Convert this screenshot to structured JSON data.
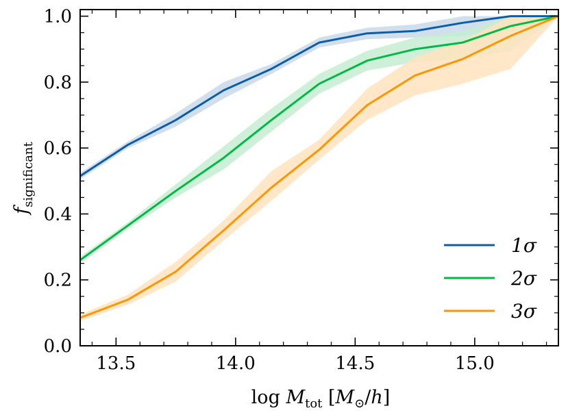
{
  "chart_data": {
    "type": "line",
    "xlabel": "log M_tot [M_⊙/h]",
    "ylabel": "f_significant",
    "xlim": [
      13.35,
      15.35
    ],
    "ylim": [
      0.0,
      1.02
    ],
    "xticks": [
      13.5,
      14.0,
      14.5,
      15.0
    ],
    "yticks": [
      0.0,
      0.2,
      0.4,
      0.6,
      0.8,
      1.0
    ],
    "xtick_labels": [
      "13.5",
      "14.0",
      "14.5",
      "15.0"
    ],
    "ytick_labels": [
      "0.0",
      "0.2",
      "0.4",
      "0.6",
      "0.8",
      "1.0"
    ],
    "legend_position": "lower-right",
    "x": [
      13.35,
      13.55,
      13.75,
      13.95,
      14.15,
      14.35,
      14.55,
      14.75,
      14.95,
      15.15,
      15.35
    ],
    "series": [
      {
        "name": "1σ",
        "color": "#0C5DA5",
        "band_color": "#c9d9ea",
        "values": [
          0.515,
          0.61,
          0.685,
          0.775,
          0.84,
          0.92,
          0.948,
          0.955,
          0.98,
          1.0,
          1.0
        ],
        "lower": [
          0.505,
          0.6,
          0.665,
          0.75,
          0.825,
          0.905,
          0.93,
          0.935,
          0.94,
          0.96,
          1.0
        ],
        "upper": [
          0.525,
          0.62,
          0.705,
          0.8,
          0.855,
          0.935,
          0.965,
          0.975,
          1.0,
          1.0,
          1.0
        ]
      },
      {
        "name": "2σ",
        "color": "#00B945",
        "band_color": "#c5edd2",
        "values": [
          0.26,
          0.365,
          0.47,
          0.57,
          0.685,
          0.795,
          0.865,
          0.9,
          0.92,
          0.97,
          1.0
        ],
        "lower": [
          0.25,
          0.355,
          0.45,
          0.535,
          0.65,
          0.765,
          0.835,
          0.86,
          0.87,
          0.895,
          1.0
        ],
        "upper": [
          0.27,
          0.375,
          0.49,
          0.605,
          0.72,
          0.825,
          0.895,
          0.935,
          0.955,
          1.0,
          1.0
        ]
      },
      {
        "name": "3σ",
        "color": "#FF9500",
        "band_color": "#ffe3bd",
        "values": [
          0.085,
          0.14,
          0.225,
          0.35,
          0.48,
          0.595,
          0.73,
          0.82,
          0.87,
          0.94,
          1.0
        ],
        "lower": [
          0.075,
          0.125,
          0.195,
          0.32,
          0.44,
          0.565,
          0.685,
          0.76,
          0.795,
          0.84,
          1.0
        ],
        "upper": [
          0.095,
          0.155,
          0.255,
          0.38,
          0.53,
          0.625,
          0.78,
          0.875,
          0.925,
          1.0,
          1.0
        ]
      }
    ]
  }
}
